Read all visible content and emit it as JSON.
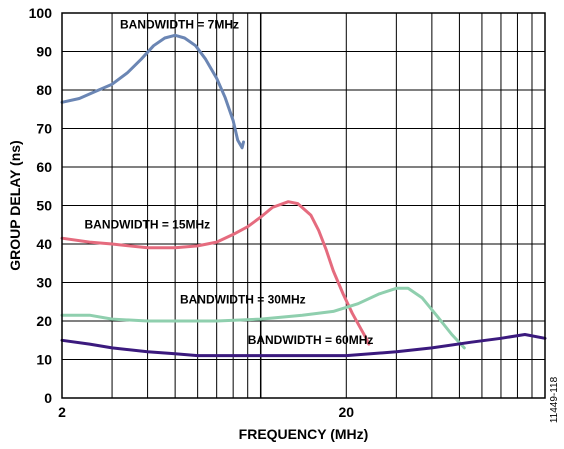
{
  "chart_data": {
    "type": "line",
    "xlabel": "FREQUENCY (MHz)",
    "ylabel": "GROUP DELAY (ns)",
    "xscale": "log",
    "xlim": [
      2,
      100
    ],
    "ylim": [
      0,
      100
    ],
    "grid": true,
    "legend": "none",
    "x_tick_labels": [
      {
        "value": 2,
        "label": "2"
      },
      {
        "value": 20,
        "label": "20"
      }
    ],
    "y_ticks": [
      0,
      10,
      20,
      30,
      40,
      50,
      60,
      70,
      80,
      90,
      100
    ],
    "series": [
      {
        "name": "BANDWIDTH = 7MHz",
        "color": "#6b86b4",
        "points": [
          [
            2,
            76.8
          ],
          [
            2.3,
            77.8
          ],
          [
            2.6,
            79.5
          ],
          [
            3.0,
            81.5
          ],
          [
            3.4,
            84.5
          ],
          [
            3.8,
            88
          ],
          [
            4.2,
            91.5
          ],
          [
            4.6,
            93.5
          ],
          [
            5.0,
            94.2
          ],
          [
            5.4,
            93.5
          ],
          [
            5.9,
            91.5
          ],
          [
            6.4,
            88
          ],
          [
            7.0,
            83
          ],
          [
            7.5,
            78
          ],
          [
            8.0,
            72
          ],
          [
            8.3,
            67
          ],
          [
            8.6,
            65
          ],
          [
            8.7,
            66.5
          ]
        ]
      },
      {
        "name": "BANDWIDTH = 15MHz",
        "color": "#e56b7e",
        "points": [
          [
            2,
            41.5
          ],
          [
            2.5,
            40.5
          ],
          [
            3,
            40
          ],
          [
            4,
            39
          ],
          [
            5,
            39
          ],
          [
            6,
            39.5
          ],
          [
            7,
            40.5
          ],
          [
            8,
            42.5
          ],
          [
            9,
            44.5
          ],
          [
            10,
            47
          ],
          [
            11,
            49.5
          ],
          [
            12.5,
            51
          ],
          [
            13.5,
            50.5
          ],
          [
            15,
            47.5
          ],
          [
            16,
            43.5
          ],
          [
            17,
            38.5
          ],
          [
            18,
            33
          ],
          [
            19.5,
            27
          ],
          [
            21,
            22
          ],
          [
            22.5,
            18
          ],
          [
            23.5,
            15.5
          ],
          [
            24,
            14
          ]
        ]
      },
      {
        "name": "BANDWIDTH = 30MHz",
        "color": "#8fcfae",
        "points": [
          [
            2,
            21.5
          ],
          [
            2.5,
            21.5
          ],
          [
            3,
            20.5
          ],
          [
            4,
            20
          ],
          [
            5,
            20
          ],
          [
            7,
            20
          ],
          [
            10,
            20.5
          ],
          [
            14,
            21.5
          ],
          [
            18,
            22.5
          ],
          [
            22,
            24.5
          ],
          [
            26,
            27
          ],
          [
            30,
            28.5
          ],
          [
            33,
            28.5
          ],
          [
            37,
            26
          ],
          [
            42,
            21
          ],
          [
            47,
            16.5
          ],
          [
            52,
            13
          ]
        ]
      },
      {
        "name": "BANDWIDTH = 60MHz",
        "color": "#3b1a7e",
        "points": [
          [
            2,
            15
          ],
          [
            2.5,
            14
          ],
          [
            3,
            13
          ],
          [
            4,
            12
          ],
          [
            5,
            11.5
          ],
          [
            6,
            11
          ],
          [
            8,
            11
          ],
          [
            10,
            11
          ],
          [
            15,
            11
          ],
          [
            20,
            11
          ],
          [
            30,
            12
          ],
          [
            40,
            13
          ],
          [
            55,
            14.5
          ],
          [
            70,
            15.5
          ],
          [
            85,
            16.5
          ],
          [
            100,
            15.5
          ]
        ]
      }
    ],
    "annotations": [
      {
        "text": "BANDWIDTH = 7MHz",
        "x": 3.2,
        "y": 96
      },
      {
        "text": "BANDWIDTH = 15MHz",
        "x": 2.4,
        "y": 44
      },
      {
        "text": "BANDWIDTH = 30MHz",
        "x": 5.2,
        "y": 24.5
      },
      {
        "text": "BANDWIDTH = 60MHz",
        "x": 9.0,
        "y": 14
      }
    ]
  },
  "figure_id": "11449-118"
}
